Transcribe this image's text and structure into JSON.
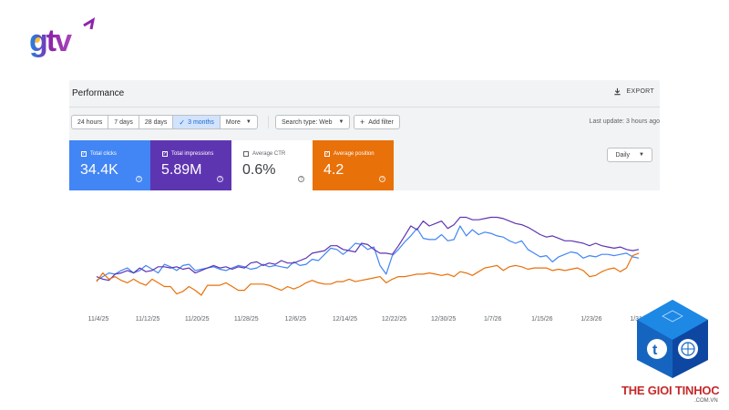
{
  "brand": {
    "logo_text": "gtv"
  },
  "header": {
    "title": "Performance",
    "export_label": "EXPORT"
  },
  "filters": {
    "date_ranges": [
      {
        "label": "24 hours",
        "active": false
      },
      {
        "label": "7 days",
        "active": false
      },
      {
        "label": "28 days",
        "active": false
      },
      {
        "label": "3 months",
        "active": true
      },
      {
        "label": "More",
        "active": false
      }
    ],
    "search_type": "Search type: Web",
    "add_filter": "Add filter",
    "last_update": "Last update: 3 hours ago"
  },
  "metrics": [
    {
      "label": "Total clicks",
      "value": "34.4K",
      "checked": true,
      "color": "#4285f4"
    },
    {
      "label": "Total impressions",
      "value": "5.89M",
      "checked": true,
      "color": "#5e35b1"
    },
    {
      "label": "Average CTR",
      "value": "0.6%",
      "checked": false,
      "color": "#ffffff"
    },
    {
      "label": "Average position",
      "value": "4.2",
      "checked": true,
      "color": "#e8710a"
    }
  ],
  "granularity": "Daily",
  "chart_data": {
    "type": "line",
    "x_tick_labels": [
      "11/4/25",
      "11/12/25",
      "11/20/25",
      "11/28/25",
      "12/6/25",
      "12/14/25",
      "12/22/25",
      "12/30/25",
      "1/7/26",
      "1/15/26",
      "1/23/26",
      "1/31/26"
    ],
    "grid": false,
    "legend": "none",
    "series": [
      {
        "name": "Total clicks",
        "color": "#4285f4",
        "values": [
          58,
          55,
          52,
          53,
          50,
          48,
          52,
          50,
          46,
          49,
          52,
          45,
          47,
          50,
          46,
          45,
          50,
          49,
          48,
          47,
          49,
          50,
          48,
          46,
          47,
          49,
          48,
          45,
          47,
          46,
          47,
          48,
          43,
          46,
          45,
          41,
          42,
          37,
          32,
          33,
          37,
          33,
          28,
          29,
          33,
          31,
          46,
          53,
          38,
          33,
          27,
          22,
          16,
          24,
          25,
          25,
          21,
          26,
          25,
          14,
          22,
          17,
          21,
          19,
          20,
          22,
          23,
          26,
          28,
          26,
          33,
          36,
          39,
          38,
          43,
          39,
          37,
          35,
          36,
          40,
          38,
          39,
          37,
          37,
          38,
          37,
          36,
          39,
          40
        ]
      },
      {
        "name": "Total impressions",
        "color": "#5e35b1",
        "values": [
          55,
          57,
          58,
          53,
          52,
          50,
          52,
          48,
          51,
          50,
          47,
          47,
          48,
          47,
          49,
          48,
          52,
          50,
          48,
          46,
          48,
          47,
          49,
          47,
          48,
          44,
          43,
          46,
          44,
          45,
          42,
          44,
          44,
          42,
          40,
          36,
          35,
          34,
          30,
          30,
          33,
          34,
          35,
          28,
          29,
          33,
          36,
          36,
          37,
          30,
          22,
          14,
          17,
          10,
          14,
          12,
          10,
          16,
          13,
          7,
          7,
          9,
          9,
          8,
          7,
          7,
          8,
          10,
          12,
          13,
          15,
          18,
          21,
          23,
          22,
          24,
          26,
          26,
          27,
          28,
          30,
          28,
          30,
          31,
          32,
          31,
          33,
          34,
          33
        ]
      },
      {
        "name": "Average position",
        "color": "#e8710a",
        "values": [
          59,
          52,
          57,
          55,
          58,
          60,
          57,
          60,
          62,
          57,
          60,
          63,
          63,
          69,
          67,
          63,
          66,
          70,
          62,
          62,
          62,
          60,
          63,
          66,
          66,
          61,
          61,
          61,
          62,
          64,
          66,
          63,
          65,
          63,
          60,
          58,
          60,
          61,
          61,
          59,
          59,
          57,
          59,
          58,
          57,
          56,
          55,
          60,
          57,
          55,
          55,
          54,
          53,
          53,
          52,
          53,
          54,
          53,
          55,
          51,
          52,
          54,
          51,
          48,
          47,
          46,
          50,
          47,
          46,
          47,
          49,
          48,
          48,
          48,
          50,
          49,
          50,
          49,
          48,
          50,
          55,
          54,
          51,
          49,
          48,
          51,
          48,
          38,
          36
        ]
      }
    ]
  }
}
